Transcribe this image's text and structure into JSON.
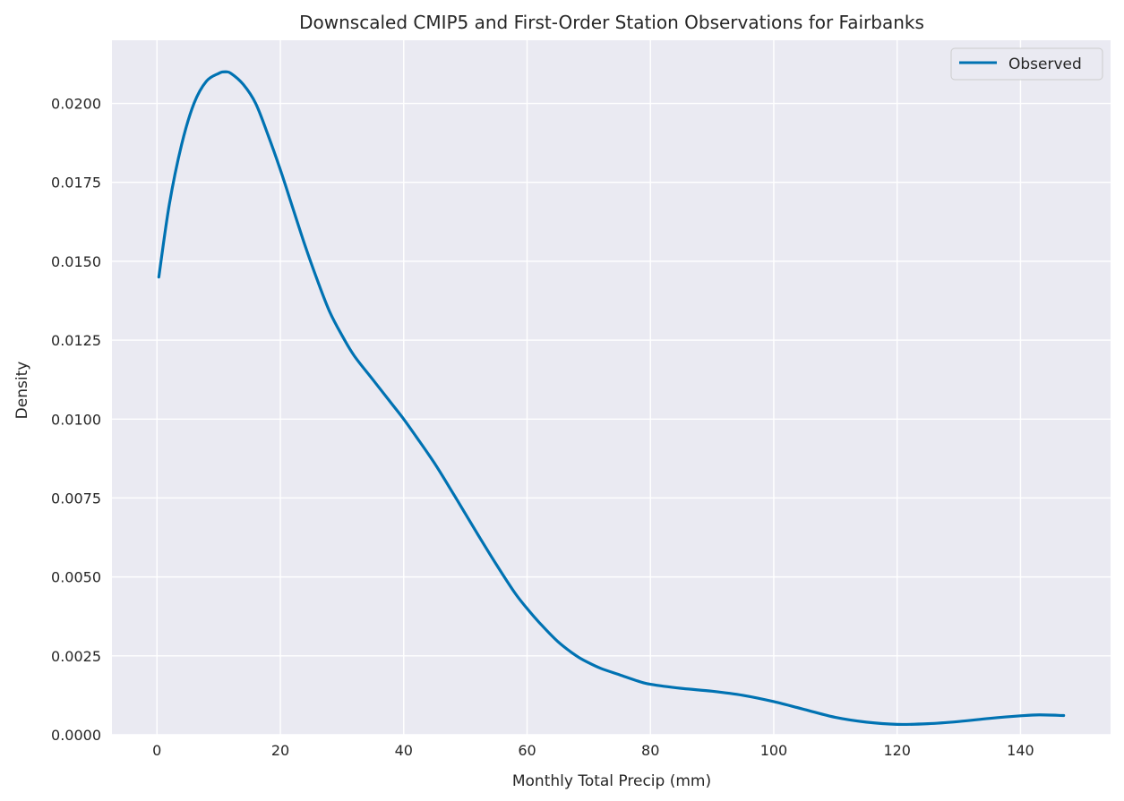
{
  "chart_data": {
    "type": "line",
    "title": "Downscaled CMIP5 and First-Order Station Observations for Fairbanks",
    "xlabel": "Monthly Total Precip (mm)",
    "ylabel": "Density",
    "xlim": [
      -7.3,
      154.6
    ],
    "ylim": [
      0,
      0.022
    ],
    "x_ticks": [
      0,
      20,
      40,
      60,
      80,
      100,
      120,
      140
    ],
    "x_tick_labels": [
      "0",
      "20",
      "40",
      "60",
      "80",
      "100",
      "120",
      "140"
    ],
    "y_ticks": [
      0,
      0.0025,
      0.005,
      0.0075,
      0.01,
      0.0125,
      0.015,
      0.0175,
      0.02
    ],
    "y_tick_labels": [
      "0.0000",
      "0.0025",
      "0.0050",
      "0.0075",
      "0.0100",
      "0.0125",
      "0.0150",
      "0.0175",
      "0.0200"
    ],
    "grid": true,
    "legend_position": "top-right",
    "colors": {
      "background": "#eaeaf2",
      "grid": "#ffffff",
      "line": "#0072b2",
      "text": "#262626"
    },
    "series": [
      {
        "name": "Observed",
        "x": [
          0.3,
          2,
          4,
          6,
          8,
          10,
          11,
          12,
          14,
          16,
          18,
          20,
          22,
          24,
          26,
          28,
          30,
          32,
          35,
          38,
          40,
          42,
          45,
          48,
          50,
          52,
          55,
          58,
          60,
          62,
          65,
          68,
          70,
          72,
          75,
          78,
          80,
          85,
          90,
          95,
          100,
          105,
          110,
          115,
          120,
          125,
          130,
          135,
          140,
          143,
          147
        ],
        "y": [
          0.0145,
          0.0168,
          0.0187,
          0.02,
          0.0207,
          0.02095,
          0.021,
          0.02095,
          0.0206,
          0.02,
          0.019,
          0.0179,
          0.0167,
          0.0155,
          0.0144,
          0.0134,
          0.01265,
          0.012,
          0.01125,
          0.0105,
          0.01,
          0.00945,
          0.0086,
          0.00765,
          0.007,
          0.00635,
          0.0054,
          0.0045,
          0.004,
          0.00355,
          0.00295,
          0.0025,
          0.00228,
          0.0021,
          0.0019,
          0.0017,
          0.0016,
          0.00147,
          0.00138,
          0.00125,
          0.00105,
          0.0008,
          0.00055,
          0.0004,
          0.00033,
          0.00035,
          0.00042,
          0.00052,
          0.0006,
          0.00063,
          0.00061
        ]
      }
    ]
  }
}
